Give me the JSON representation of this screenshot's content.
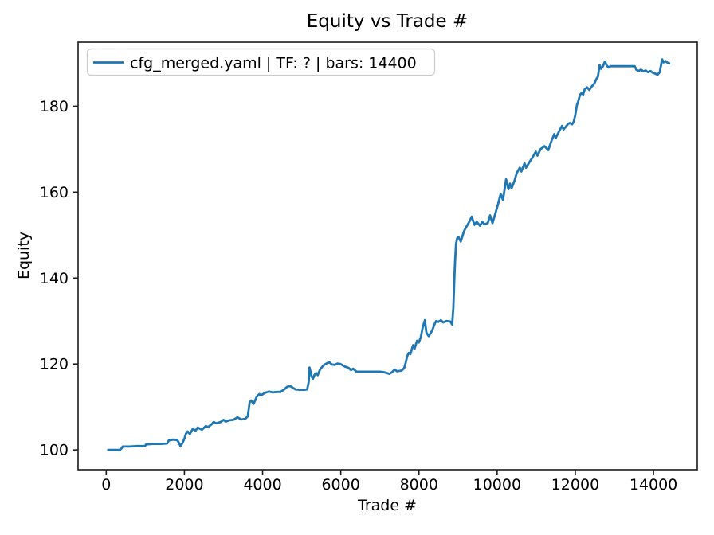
{
  "figure": {
    "background": "#ffffff",
    "text_color": "#000000",
    "spine_color": "#1a1a1a"
  },
  "chart_data": {
    "type": "line",
    "title": "Equity vs Trade #",
    "xlabel": "Trade #",
    "ylabel": "Equity",
    "grid": false,
    "legend": {
      "position": "upper left",
      "entries": [
        "cfg_merged.yaml | TF: ? | bars: 14400"
      ]
    },
    "xticks": [
      0,
      2000,
      4000,
      6000,
      8000,
      10000,
      12000,
      14000
    ],
    "yticks": [
      100,
      120,
      140,
      160,
      180
    ],
    "xlim": [
      -720,
      15120
    ],
    "ylim": [
      95.4,
      194.9
    ],
    "series": [
      {
        "name": "cfg_merged.yaml | TF: ? | bars: 14400",
        "color": "#1f77b4",
        "points": [
          [
            50,
            100
          ],
          [
            200,
            100
          ],
          [
            350,
            100
          ],
          [
            395,
            100.4
          ],
          [
            420,
            100.8
          ],
          [
            600,
            100.8
          ],
          [
            800,
            100.9
          ],
          [
            990,
            100.9
          ],
          [
            1020,
            101.3
          ],
          [
            1200,
            101.4
          ],
          [
            1400,
            101.4
          ],
          [
            1560,
            101.5
          ],
          [
            1600,
            102.2
          ],
          [
            1700,
            102.4
          ],
          [
            1820,
            102.3
          ],
          [
            1870,
            101.5
          ],
          [
            1900,
            100.9
          ],
          [
            1950,
            101.6
          ],
          [
            2000,
            102.6
          ],
          [
            2040,
            103.8
          ],
          [
            2080,
            104.3
          ],
          [
            2140,
            103.7
          ],
          [
            2220,
            105.0
          ],
          [
            2280,
            104.4
          ],
          [
            2340,
            105.2
          ],
          [
            2450,
            104.7
          ],
          [
            2550,
            105.6
          ],
          [
            2600,
            105.3
          ],
          [
            2690,
            105.9
          ],
          [
            2750,
            106.5
          ],
          [
            2810,
            106.2
          ],
          [
            2930,
            106.5
          ],
          [
            3000,
            107.0
          ],
          [
            3060,
            106.6
          ],
          [
            3150,
            106.9
          ],
          [
            3250,
            107.0
          ],
          [
            3360,
            107.6
          ],
          [
            3450,
            107.1
          ],
          [
            3550,
            107.2
          ],
          [
            3620,
            107.8
          ],
          [
            3650,
            109.8
          ],
          [
            3670,
            111.1
          ],
          [
            3710,
            111.5
          ],
          [
            3770,
            110.7
          ],
          [
            3850,
            112.4
          ],
          [
            3915,
            113.0
          ],
          [
            3960,
            112.7
          ],
          [
            4060,
            113.3
          ],
          [
            4160,
            113.6
          ],
          [
            4260,
            113.4
          ],
          [
            4360,
            113.5
          ],
          [
            4460,
            113.5
          ],
          [
            4570,
            114.2
          ],
          [
            4630,
            114.7
          ],
          [
            4700,
            114.9
          ],
          [
            4770,
            114.5
          ],
          [
            4840,
            114.1
          ],
          [
            4950,
            114.0
          ],
          [
            5060,
            114.0
          ],
          [
            5140,
            114.1
          ],
          [
            5180,
            115.8
          ],
          [
            5200,
            119.2
          ],
          [
            5230,
            118.1
          ],
          [
            5260,
            117.0
          ],
          [
            5290,
            116.6
          ],
          [
            5330,
            117.5
          ],
          [
            5370,
            117.9
          ],
          [
            5410,
            117.4
          ],
          [
            5470,
            118.7
          ],
          [
            5530,
            119.4
          ],
          [
            5590,
            119.9
          ],
          [
            5650,
            120.2
          ],
          [
            5710,
            120.4
          ],
          [
            5770,
            119.9
          ],
          [
            5850,
            119.8
          ],
          [
            5910,
            120.1
          ],
          [
            5990,
            120.0
          ],
          [
            6050,
            119.7
          ],
          [
            6110,
            119.4
          ],
          [
            6200,
            119.1
          ],
          [
            6260,
            118.6
          ],
          [
            6320,
            118.9
          ],
          [
            6400,
            118.2
          ],
          [
            6550,
            118.2
          ],
          [
            6700,
            118.2
          ],
          [
            6850,
            118.2
          ],
          [
            7000,
            118.2
          ],
          [
            7100,
            118.1
          ],
          [
            7180,
            117.9
          ],
          [
            7250,
            117.7
          ],
          [
            7310,
            118.1
          ],
          [
            7380,
            118.7
          ],
          [
            7440,
            118.3
          ],
          [
            7510,
            118.4
          ],
          [
            7560,
            118.5
          ],
          [
            7620,
            119.0
          ],
          [
            7660,
            120.3
          ],
          [
            7700,
            121.8
          ],
          [
            7740,
            122.6
          ],
          [
            7780,
            122.3
          ],
          [
            7850,
            124.4
          ],
          [
            7890,
            123.6
          ],
          [
            7950,
            125.4
          ],
          [
            8000,
            125.0
          ],
          [
            8050,
            126.3
          ],
          [
            8090,
            128.3
          ],
          [
            8150,
            130.2
          ],
          [
            8190,
            127.3
          ],
          [
            8250,
            126.5
          ],
          [
            8340,
            127.8
          ],
          [
            8400,
            129.3
          ],
          [
            8440,
            130.0
          ],
          [
            8500,
            129.8
          ],
          [
            8560,
            130.2
          ],
          [
            8620,
            129.7
          ],
          [
            8700,
            130.0
          ],
          [
            8800,
            129.9
          ],
          [
            8850,
            129.2
          ],
          [
            8880,
            133.0
          ],
          [
            8900,
            138.5
          ],
          [
            8925,
            144.0
          ],
          [
            8950,
            148.0
          ],
          [
            8980,
            149.3
          ],
          [
            9010,
            149.6
          ],
          [
            9070,
            148.5
          ],
          [
            9150,
            150.9
          ],
          [
            9210,
            151.9
          ],
          [
            9270,
            152.8
          ],
          [
            9350,
            154.3
          ],
          [
            9420,
            152.4
          ],
          [
            9480,
            153.1
          ],
          [
            9560,
            152.2
          ],
          [
            9620,
            153.1
          ],
          [
            9680,
            152.5
          ],
          [
            9760,
            152.8
          ],
          [
            9820,
            154.6
          ],
          [
            9880,
            152.8
          ],
          [
            9960,
            155.2
          ],
          [
            10030,
            157.4
          ],
          [
            10090,
            159.6
          ],
          [
            10150,
            158.2
          ],
          [
            10230,
            163.0
          ],
          [
            10290,
            160.7
          ],
          [
            10330,
            162.0
          ],
          [
            10370,
            160.9
          ],
          [
            10450,
            162.8
          ],
          [
            10500,
            164.4
          ],
          [
            10580,
            165.7
          ],
          [
            10620,
            164.8
          ],
          [
            10700,
            166.7
          ],
          [
            10740,
            165.7
          ],
          [
            10840,
            167.2
          ],
          [
            10900,
            168.0
          ],
          [
            10990,
            169.4
          ],
          [
            11030,
            168.5
          ],
          [
            11110,
            170.0
          ],
          [
            11170,
            170.4
          ],
          [
            11210,
            170.7
          ],
          [
            11310,
            169.8
          ],
          [
            11390,
            171.9
          ],
          [
            11460,
            173.5
          ],
          [
            11500,
            172.6
          ],
          [
            11600,
            174.4
          ],
          [
            11660,
            175.4
          ],
          [
            11700,
            174.6
          ],
          [
            11820,
            175.9
          ],
          [
            11860,
            176.1
          ],
          [
            11920,
            175.8
          ],
          [
            11960,
            176.4
          ],
          [
            12000,
            178.0
          ],
          [
            12040,
            180.2
          ],
          [
            12080,
            181.3
          ],
          [
            12120,
            182.6
          ],
          [
            12160,
            183.1
          ],
          [
            12200,
            182.7
          ],
          [
            12240,
            183.9
          ],
          [
            12300,
            184.4
          ],
          [
            12360,
            183.8
          ],
          [
            12420,
            184.6
          ],
          [
            12480,
            185.2
          ],
          [
            12540,
            186.3
          ],
          [
            12580,
            186.9
          ],
          [
            12620,
            189.6
          ],
          [
            12660,
            188.7
          ],
          [
            12700,
            189.2
          ],
          [
            12760,
            190.4
          ],
          [
            12800,
            189.5
          ],
          [
            12850,
            189.0
          ],
          [
            12900,
            189.3
          ],
          [
            13050,
            189.3
          ],
          [
            13200,
            189.3
          ],
          [
            13350,
            189.3
          ],
          [
            13520,
            189.3
          ],
          [
            13560,
            188.5
          ],
          [
            13620,
            188.2
          ],
          [
            13680,
            188.5
          ],
          [
            13740,
            188.1
          ],
          [
            13800,
            188.3
          ],
          [
            13860,
            187.9
          ],
          [
            13920,
            188.2
          ],
          [
            13980,
            187.8
          ],
          [
            14040,
            187.6
          ],
          [
            14100,
            187.3
          ],
          [
            14160,
            187.9
          ],
          [
            14220,
            190.9
          ],
          [
            14260,
            190.2
          ],
          [
            14310,
            190.5
          ],
          [
            14360,
            190.1
          ],
          [
            14400,
            190.0
          ]
        ]
      }
    ]
  }
}
